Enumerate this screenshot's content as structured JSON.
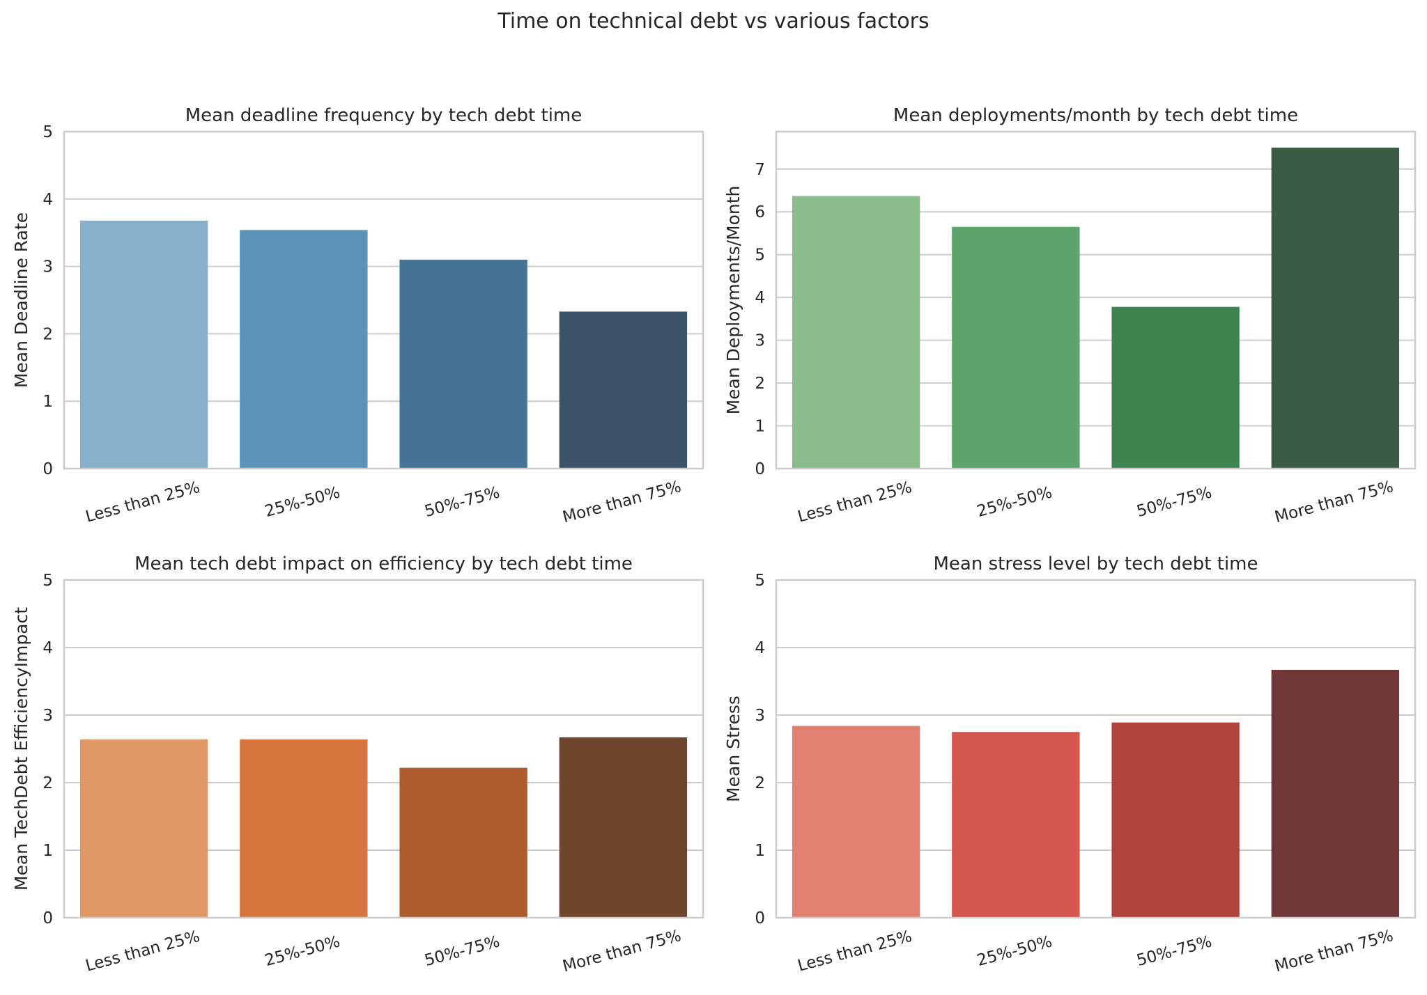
{
  "figure": {
    "title": "Time on technical debt vs various factors"
  },
  "chart_data": [
    {
      "type": "bar",
      "title": "Mean deadline frequency by tech debt time",
      "xlabel": "",
      "ylabel": "Mean Deadline Rate",
      "categories": [
        "Less than 25%",
        "25%-50%",
        "50%-75%",
        "More than 75%"
      ],
      "values": [
        3.68,
        3.54,
        3.1,
        2.33
      ],
      "colors": [
        "#89b1cc",
        "#5c93b9",
        "#447594",
        "#3c5368"
      ],
      "ylim": [
        0,
        5
      ],
      "yticks": [
        0,
        1,
        2,
        3,
        4,
        5
      ],
      "grid": true
    },
    {
      "type": "bar",
      "title": "Mean deployments/month by tech debt time",
      "xlabel": "",
      "ylabel": "Mean Deployments/Month",
      "categories": [
        "Less than 25%",
        "25%-50%",
        "50%-75%",
        "More than 75%"
      ],
      "values": [
        6.37,
        5.65,
        3.78,
        7.5
      ],
      "colors": [
        "#8abc8c",
        "#5ca46c",
        "#418251",
        "#3b5b44"
      ],
      "ylim": [
        0,
        7.875
      ],
      "yticks": [
        0,
        1,
        2,
        3,
        4,
        5,
        6,
        7
      ],
      "grid": true
    },
    {
      "type": "bar",
      "title": "Mean tech debt impact on efficiency by tech debt time",
      "xlabel": "",
      "ylabel": "Mean TechDebt EfficiencyImpact",
      "categories": [
        "Less than 25%",
        "25%-50%",
        "50%-75%",
        "More than 75%"
      ],
      "values": [
        2.64,
        2.64,
        2.22,
        2.67
      ],
      "colors": [
        "#e09866",
        "#d6763e",
        "#ae5b2d",
        "#70462f"
      ],
      "ylim": [
        0,
        5
      ],
      "yticks": [
        0,
        1,
        2,
        3,
        4,
        5
      ],
      "grid": true
    },
    {
      "type": "bar",
      "title": "Mean stress level by tech debt time",
      "xlabel": "",
      "ylabel": "Mean Stress",
      "categories": [
        "Less than 25%",
        "25%-50%",
        "50%-75%",
        "More than 75%"
      ],
      "values": [
        2.84,
        2.75,
        2.89,
        3.67
      ],
      "colors": [
        "#e08070",
        "#d3574e",
        "#ae433c",
        "#703739"
      ],
      "ylim": [
        0,
        5
      ],
      "yticks": [
        0,
        1,
        2,
        3,
        4,
        5
      ],
      "grid": true
    }
  ]
}
